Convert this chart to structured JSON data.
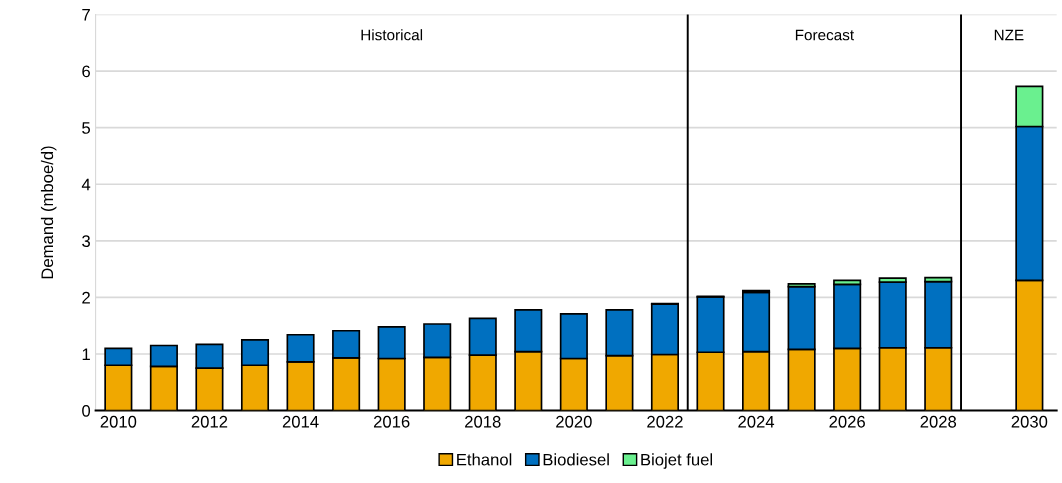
{
  "chart_data": {
    "type": "bar",
    "stacked": true,
    "ylabel": "Demand (mboe/d)",
    "x": [
      2010,
      2011,
      2012,
      2013,
      2014,
      2015,
      2016,
      2017,
      2018,
      2019,
      2020,
      2021,
      2022,
      2023,
      2024,
      2025,
      2026,
      2027,
      2028,
      2029,
      2030
    ],
    "xlim": [
      2009.5,
      2030.6
    ],
    "xticks": [
      2010,
      2012,
      2014,
      2016,
      2018,
      2020,
      2022,
      2024,
      2026,
      2028,
      2030
    ],
    "ylim": [
      0,
      7
    ],
    "yticks": [
      0,
      1,
      2,
      3,
      4,
      5,
      6,
      7
    ],
    "grid": "y",
    "legend": "bottom",
    "series": [
      {
        "name": "Ethanol",
        "color": "#f0a800",
        "values": [
          0.8,
          0.78,
          0.75,
          0.8,
          0.86,
          0.93,
          0.92,
          0.94,
          0.98,
          1.04,
          0.92,
          0.97,
          0.99,
          1.03,
          1.04,
          1.08,
          1.1,
          1.11,
          1.11,
          null,
          2.3
        ]
      },
      {
        "name": "Biodiesel",
        "color": "#0070c0",
        "values": [
          0.3,
          0.37,
          0.42,
          0.45,
          0.48,
          0.48,
          0.56,
          0.59,
          0.65,
          0.74,
          0.79,
          0.81,
          0.89,
          0.98,
          1.05,
          1.11,
          1.13,
          1.16,
          1.17,
          null,
          2.72
        ]
      },
      {
        "name": "Biojet fuel",
        "color": "#6af08f",
        "values": [
          null,
          null,
          null,
          null,
          null,
          null,
          null,
          null,
          null,
          null,
          null,
          null,
          0.01,
          0.01,
          0.03,
          0.05,
          0.07,
          0.07,
          0.07,
          null,
          0.71
        ]
      }
    ],
    "ref_lines": [
      {
        "axis": "x",
        "value": 2022.5,
        "color": "#000000"
      },
      {
        "axis": "x",
        "value": 2028.5,
        "color": "#000000"
      }
    ],
    "annotations": [
      "Historical",
      "Forecast",
      "NZE"
    ]
  }
}
